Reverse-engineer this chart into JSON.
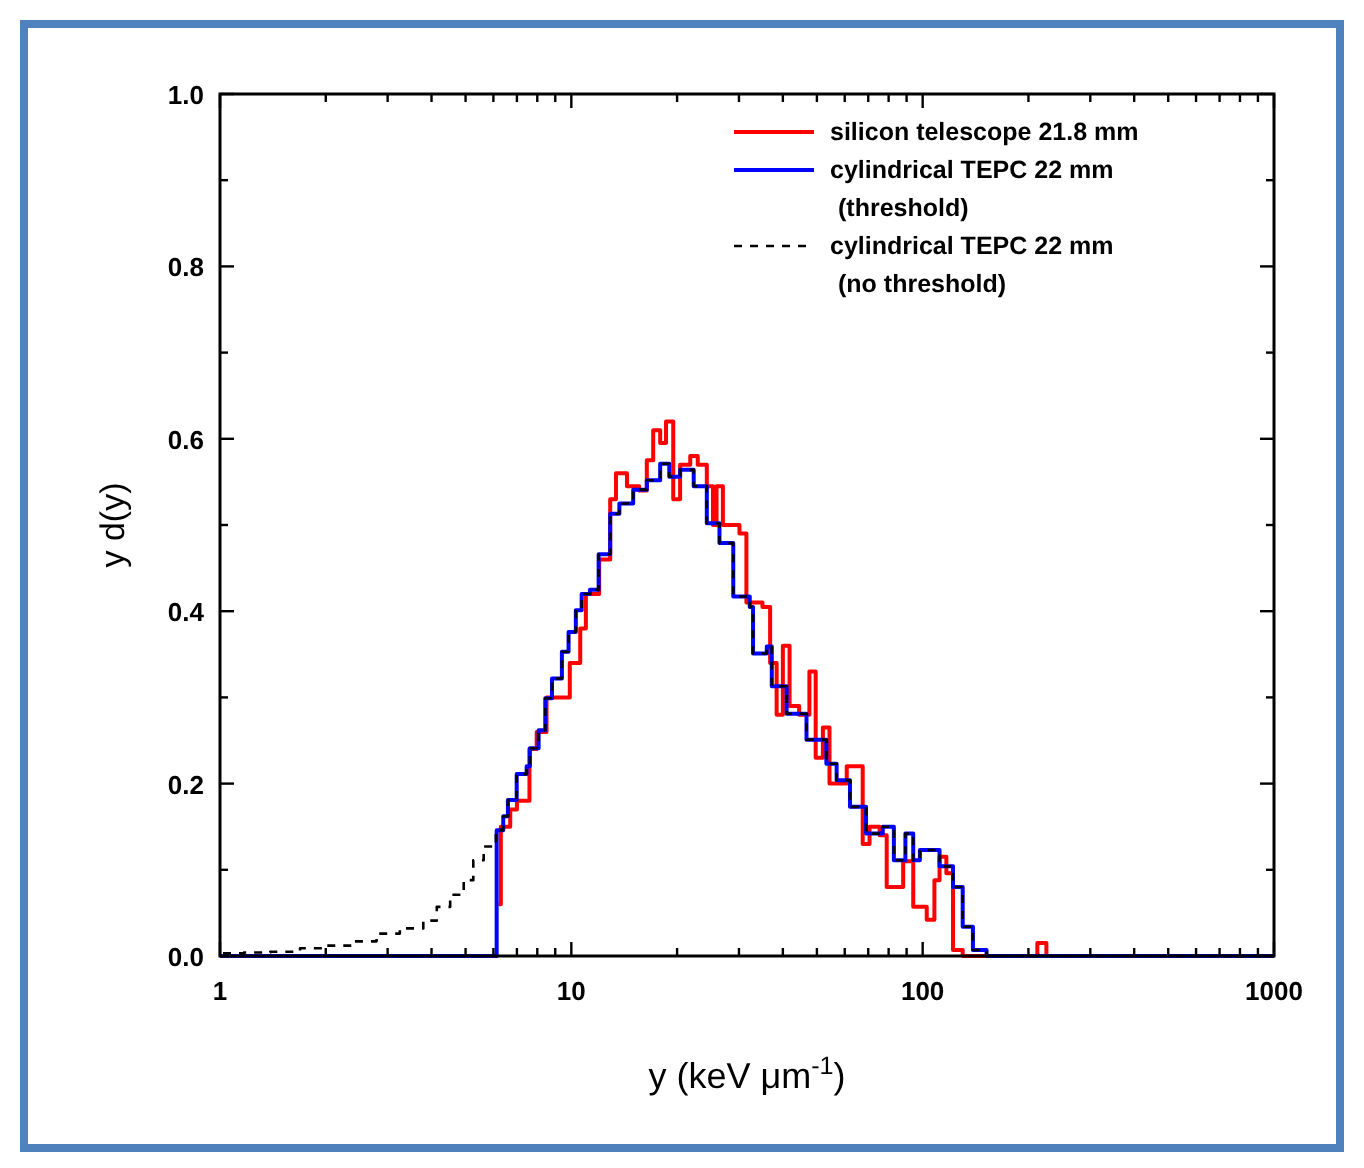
{
  "chart_data": {
    "type": "step",
    "xlabel": "y (keV μm$^{-1}$)",
    "ylabel": "y d(y)",
    "log": "x",
    "xlim": [
      1,
      1000
    ],
    "ylim": [
      0,
      1
    ],
    "xticks": [
      1,
      {
        "value": 2,
        "label": null
      },
      {
        "value": 3,
        "label": null
      },
      {
        "value": 4,
        "label": null
      },
      {
        "value": 5,
        "label": null
      },
      {
        "value": 6,
        "label": null
      },
      {
        "value": 7,
        "label": null
      },
      {
        "value": 8,
        "label": null
      },
      {
        "value": 9,
        "label": null
      },
      10,
      {
        "value": 20,
        "label": null
      },
      {
        "value": 30,
        "label": null
      },
      {
        "value": 40,
        "label": null
      },
      {
        "value": 50,
        "label": null
      },
      {
        "value": 60,
        "label": null
      },
      {
        "value": 70,
        "label": null
      },
      {
        "value": 80,
        "label": null
      },
      {
        "value": 90,
        "label": null
      },
      100,
      {
        "value": 200,
        "label": null
      },
      {
        "value": 300,
        "label": null
      },
      {
        "value": 400,
        "label": null
      },
      {
        "value": 500,
        "label": null
      },
      {
        "value": 600,
        "label": null
      },
      {
        "value": 700,
        "label": null
      },
      {
        "value": 800,
        "label": null
      },
      {
        "value": 900,
        "label": null
      },
      1000
    ],
    "yticks": [
      {
        "value": 0,
        "label": "0.0"
      },
      {
        "value": 0.1,
        "label": null
      },
      0.2,
      {
        "value": 0.3,
        "label": null
      },
      0.4,
      {
        "value": 0.5,
        "label": null
      },
      0.6,
      {
        "value": 0.7,
        "label": null
      },
      0.8,
      {
        "value": 0.9,
        "label": null
      },
      {
        "value": 1,
        "label": "1.0"
      }
    ],
    "grid": false,
    "legend": "top right",
    "series": [
      {
        "name": "silicon telescope 21.8 mm",
        "color": "#ff0000",
        "line_style": "solid",
        "x": [
          6.2,
          6.3,
          6.7,
          7.0,
          7.6,
          7.97,
          8.5,
          9.9,
          10.6,
          11.0,
          12.0,
          12.9,
          13.4,
          14.4,
          15.6,
          16.4,
          17.1,
          17.9,
          18.6,
          19.5,
          20.4,
          21.8,
          22.9,
          24.3,
          25.3,
          25.9,
          27.0,
          30.1,
          31.5,
          35,
          36.8,
          38.4,
          40,
          41.8,
          44.5,
          47.6,
          49.6,
          52,
          54.3,
          60.8,
          67.5,
          70.6,
          75.4,
          79,
          88,
          94,
          102.7,
          108,
          111.7,
          116.8,
          122,
          130,
          212,
          225,
          1000
        ],
        "values": [
          0.06,
          0.15,
          0.17,
          0.18,
          0.24,
          0.26,
          0.3,
          0.34,
          0.38,
          0.42,
          0.46,
          0.53,
          0.56,
          0.545,
          0.54,
          0.575,
          0.61,
          0.595,
          0.62,
          0.53,
          0.57,
          0.58,
          0.57,
          0.545,
          0.5,
          0.545,
          0.5,
          0.49,
          0.41,
          0.405,
          0.34,
          0.28,
          0.36,
          0.29,
          0.28,
          0.33,
          0.23,
          0.265,
          0.2,
          0.22,
          0.13,
          0.15,
          0.14,
          0.08,
          0.11,
          0.057,
          0.042,
          0.088,
          0.115,
          0.096,
          0.007,
          0,
          0.015,
          0,
          0
        ]
      },
      {
        "name": "cylindrical TEPC 22 mm\n(threshold)",
        "color": "#0000ff",
        "line_style": "solid",
        "x": [
          1,
          6.13,
          6.4,
          6.6,
          6.99,
          7.46,
          7.62,
          8.07,
          8.43,
          8.81,
          9.4,
          9.82,
          10.3,
          10.7,
          11.3,
          11.96,
          12.9,
          13.7,
          15.0,
          16.4,
          17.9,
          19.0,
          20.4,
          22.3,
          24.3,
          26.4,
          28.9,
          32.2,
          32.9,
          36.0,
          37.2,
          41.0,
          46.7,
          53.2,
          56.9,
          62.1,
          69.0,
          77.0,
          82.8,
          89.3,
          94,
          98.2,
          111.7,
          122,
          130,
          139,
          152,
          1000
        ],
        "values": [
          0,
          0.146,
          0.162,
          0.181,
          0.211,
          0.22,
          0.241,
          0.262,
          0.299,
          0.322,
          0.353,
          0.376,
          0.401,
          0.42,
          0.425,
          0.466,
          0.513,
          0.525,
          0.541,
          0.552,
          0.571,
          0.556,
          0.564,
          0.545,
          0.502,
          0.479,
          0.417,
          0.405,
          0.351,
          0.359,
          0.313,
          0.281,
          0.251,
          0.223,
          0.204,
          0.173,
          0.142,
          0.15,
          0.111,
          0.142,
          0.111,
          0.123,
          0.104,
          0.08,
          0.034,
          0.007,
          0,
          0
        ]
      },
      {
        "name": "cylindrical TEPC 22 mm\n(no threshold)",
        "color": "#000000",
        "line_style": "dashed",
        "x": [
          1.02,
          1.17,
          1.39,
          1.69,
          1.97,
          2.4,
          2.79,
          3.25,
          3.79,
          4.14,
          4.52,
          4.94,
          5.26,
          5.63,
          6.1,
          6.4,
          6.6,
          6.99,
          7.46,
          7.62,
          8.07,
          8.43,
          8.81,
          9.4,
          9.82,
          10.3,
          10.7,
          11.3,
          11.96,
          12.9,
          13.7,
          15.0,
          16.4,
          17.9,
          19.0,
          20.4,
          22.3,
          24.3,
          26.4,
          28.9,
          32.2,
          32.9,
          36.0,
          37.2,
          41.0,
          46.7,
          53.2,
          56.9,
          62.1,
          69.0,
          77.0,
          82.8,
          89.3,
          94,
          98.2,
          111.7,
          122,
          130,
          139,
          152,
          1000
        ],
        "values": [
          0.003,
          0.004,
          0.005,
          0.009,
          0.012,
          0.017,
          0.026,
          0.032,
          0.041,
          0.057,
          0.071,
          0.088,
          0.111,
          0.127,
          0.146,
          0.162,
          0.181,
          0.211,
          0.22,
          0.241,
          0.262,
          0.299,
          0.322,
          0.353,
          0.376,
          0.401,
          0.42,
          0.425,
          0.466,
          0.513,
          0.525,
          0.541,
          0.552,
          0.571,
          0.556,
          0.564,
          0.545,
          0.502,
          0.479,
          0.417,
          0.405,
          0.351,
          0.359,
          0.313,
          0.281,
          0.251,
          0.223,
          0.204,
          0.173,
          0.142,
          0.15,
          0.111,
          0.142,
          0.111,
          0.123,
          0.104,
          0.08,
          0.034,
          0.007,
          0,
          0
        ]
      }
    ]
  }
}
